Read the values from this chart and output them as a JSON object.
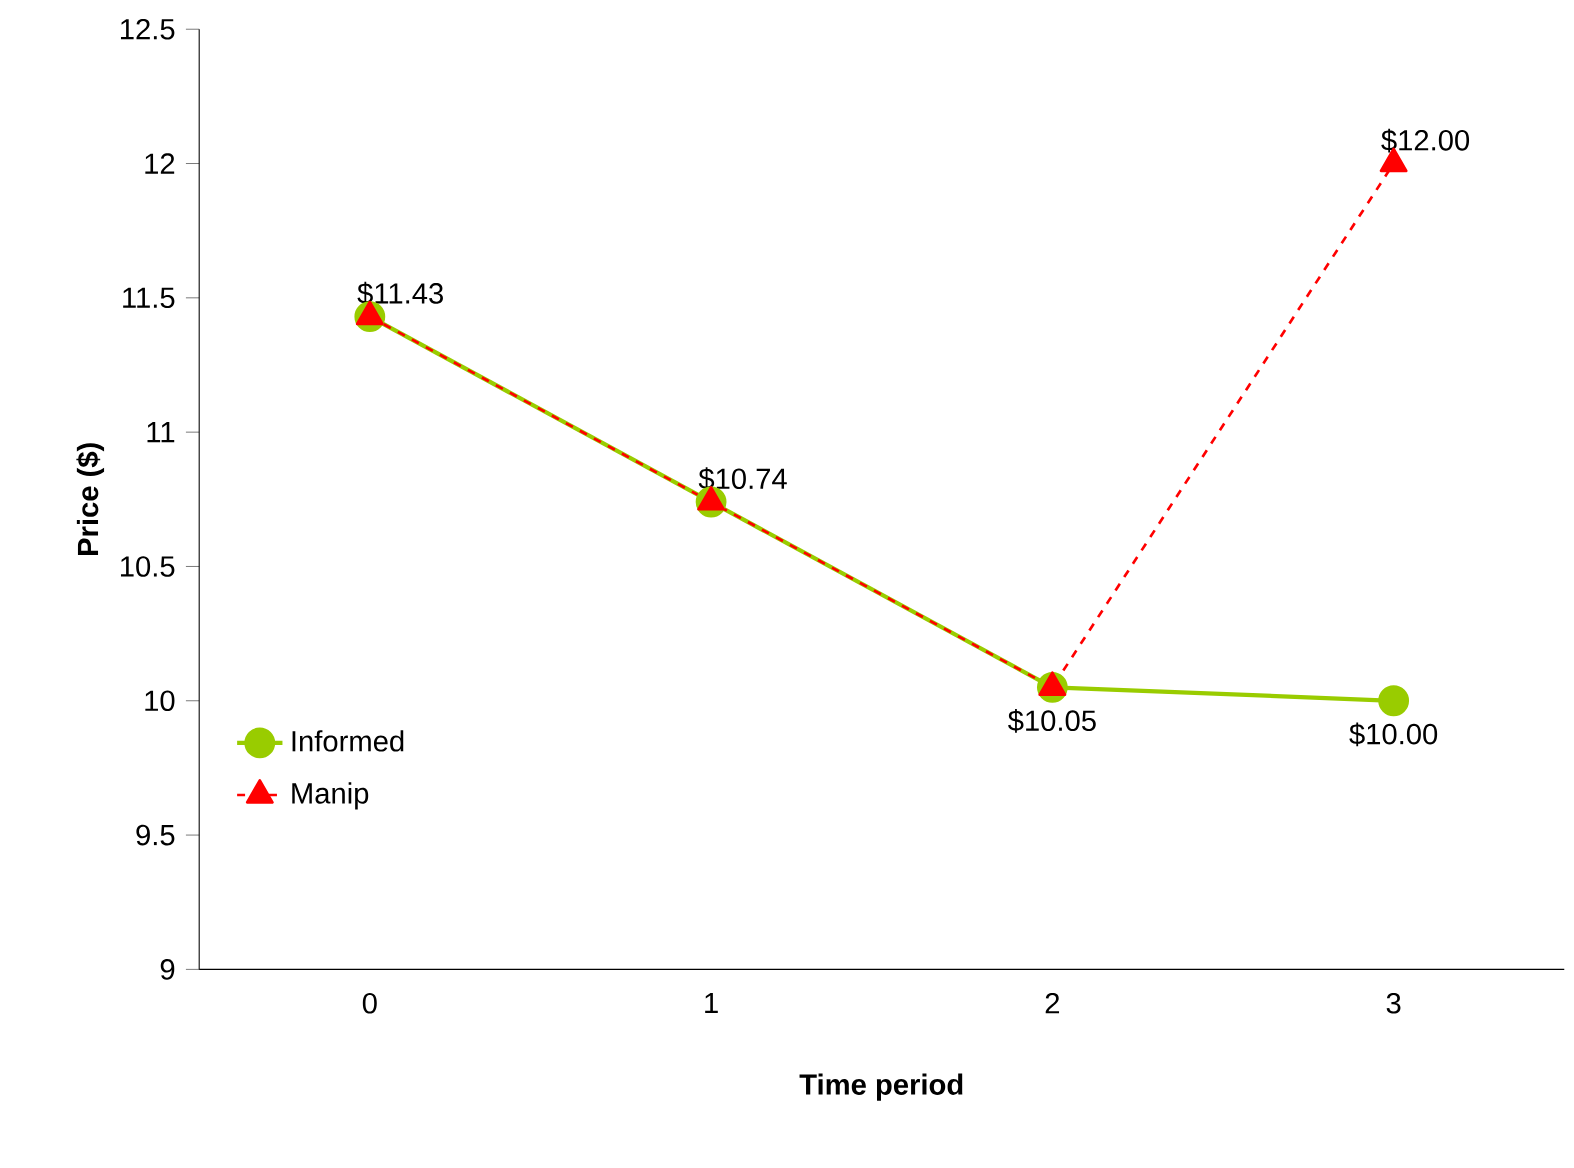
{
  "chart_data": {
    "type": "line",
    "xlabel": "Time period",
    "ylabel": "Price ($)",
    "categories": [
      "0",
      "1",
      "2",
      "3"
    ],
    "series": [
      {
        "name": "Informed",
        "color": "#99cc00",
        "marker": "circle",
        "line_style": "solid",
        "values": [
          11.43,
          10.74,
          10.05,
          10.0
        ],
        "value_labels": [
          "$11.43",
          "$10.74",
          "$10.05",
          "$10.00"
        ]
      },
      {
        "name": "Manip",
        "color": "#ff0000",
        "marker": "triangle",
        "line_style": "dashed",
        "values": [
          11.43,
          10.74,
          10.05,
          12.0
        ],
        "value_labels": [
          null,
          null,
          null,
          "$12.00"
        ]
      }
    ],
    "ylim": [
      9,
      12.5
    ],
    "yticks": [
      9,
      9.5,
      10,
      10.5,
      11,
      11.5,
      12,
      12.5
    ],
    "grid": false,
    "legend": "bottom left"
  }
}
